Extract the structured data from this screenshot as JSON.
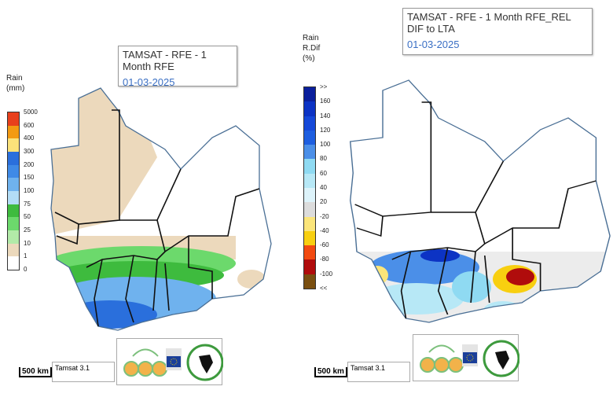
{
  "left_map": {
    "title": "TAMSAT - RFE - 1 Month RFE",
    "date": "01-03-2025",
    "legend_title": [
      "Rain",
      "(mm)"
    ],
    "legend_colors": [
      "#e8401c",
      "#f39a12",
      "#fbe27a",
      "#2a6fdc",
      "#3f8ae6",
      "#6fb2ee",
      "#b3ddf6",
      "#3ebb3e",
      "#6cd96c",
      "#b2eaa8",
      "#ecd9bc",
      "#ffffff"
    ],
    "legend_labels": [
      "5000",
      "600",
      "400",
      "300",
      "200",
      "150",
      "100",
      "75",
      "50",
      "25",
      "10",
      "1",
      "0"
    ],
    "scale_label": "500 km",
    "source": "Tamsat 3.1"
  },
  "right_map": {
    "title": "TAMSAT - RFE - 1 Month RFE_REL DIF to LTA",
    "date": "01-03-2025",
    "legend_title": [
      "Rain",
      "R.Dif",
      "(%)"
    ],
    "legend_colors": [
      "#0a1f9c",
      "#0c33c4",
      "#1548d8",
      "#1d5ee0",
      "#4b8fe8",
      "#8fdaf2",
      "#b7e8f6",
      "#ddf3fa",
      "#dcdcdc",
      "#fbe57a",
      "#f8cf10",
      "#f24a10",
      "#b00c0c",
      "#7a4f10"
    ],
    "legend_labels": [
      ">>",
      "160",
      "140",
      "120",
      "100",
      "80",
      "60",
      "40",
      "20",
      "-20",
      "-40",
      "-60",
      "-80",
      "-100",
      "<<"
    ],
    "scale_label": "500 km",
    "source": "Tamsat 3.1"
  },
  "logos": [
    "CCP",
    "European Commission",
    "CILSS"
  ],
  "colors": {
    "border": "#4a6f95",
    "country_lines": "#111111",
    "title_date": "#3a6fc4"
  }
}
